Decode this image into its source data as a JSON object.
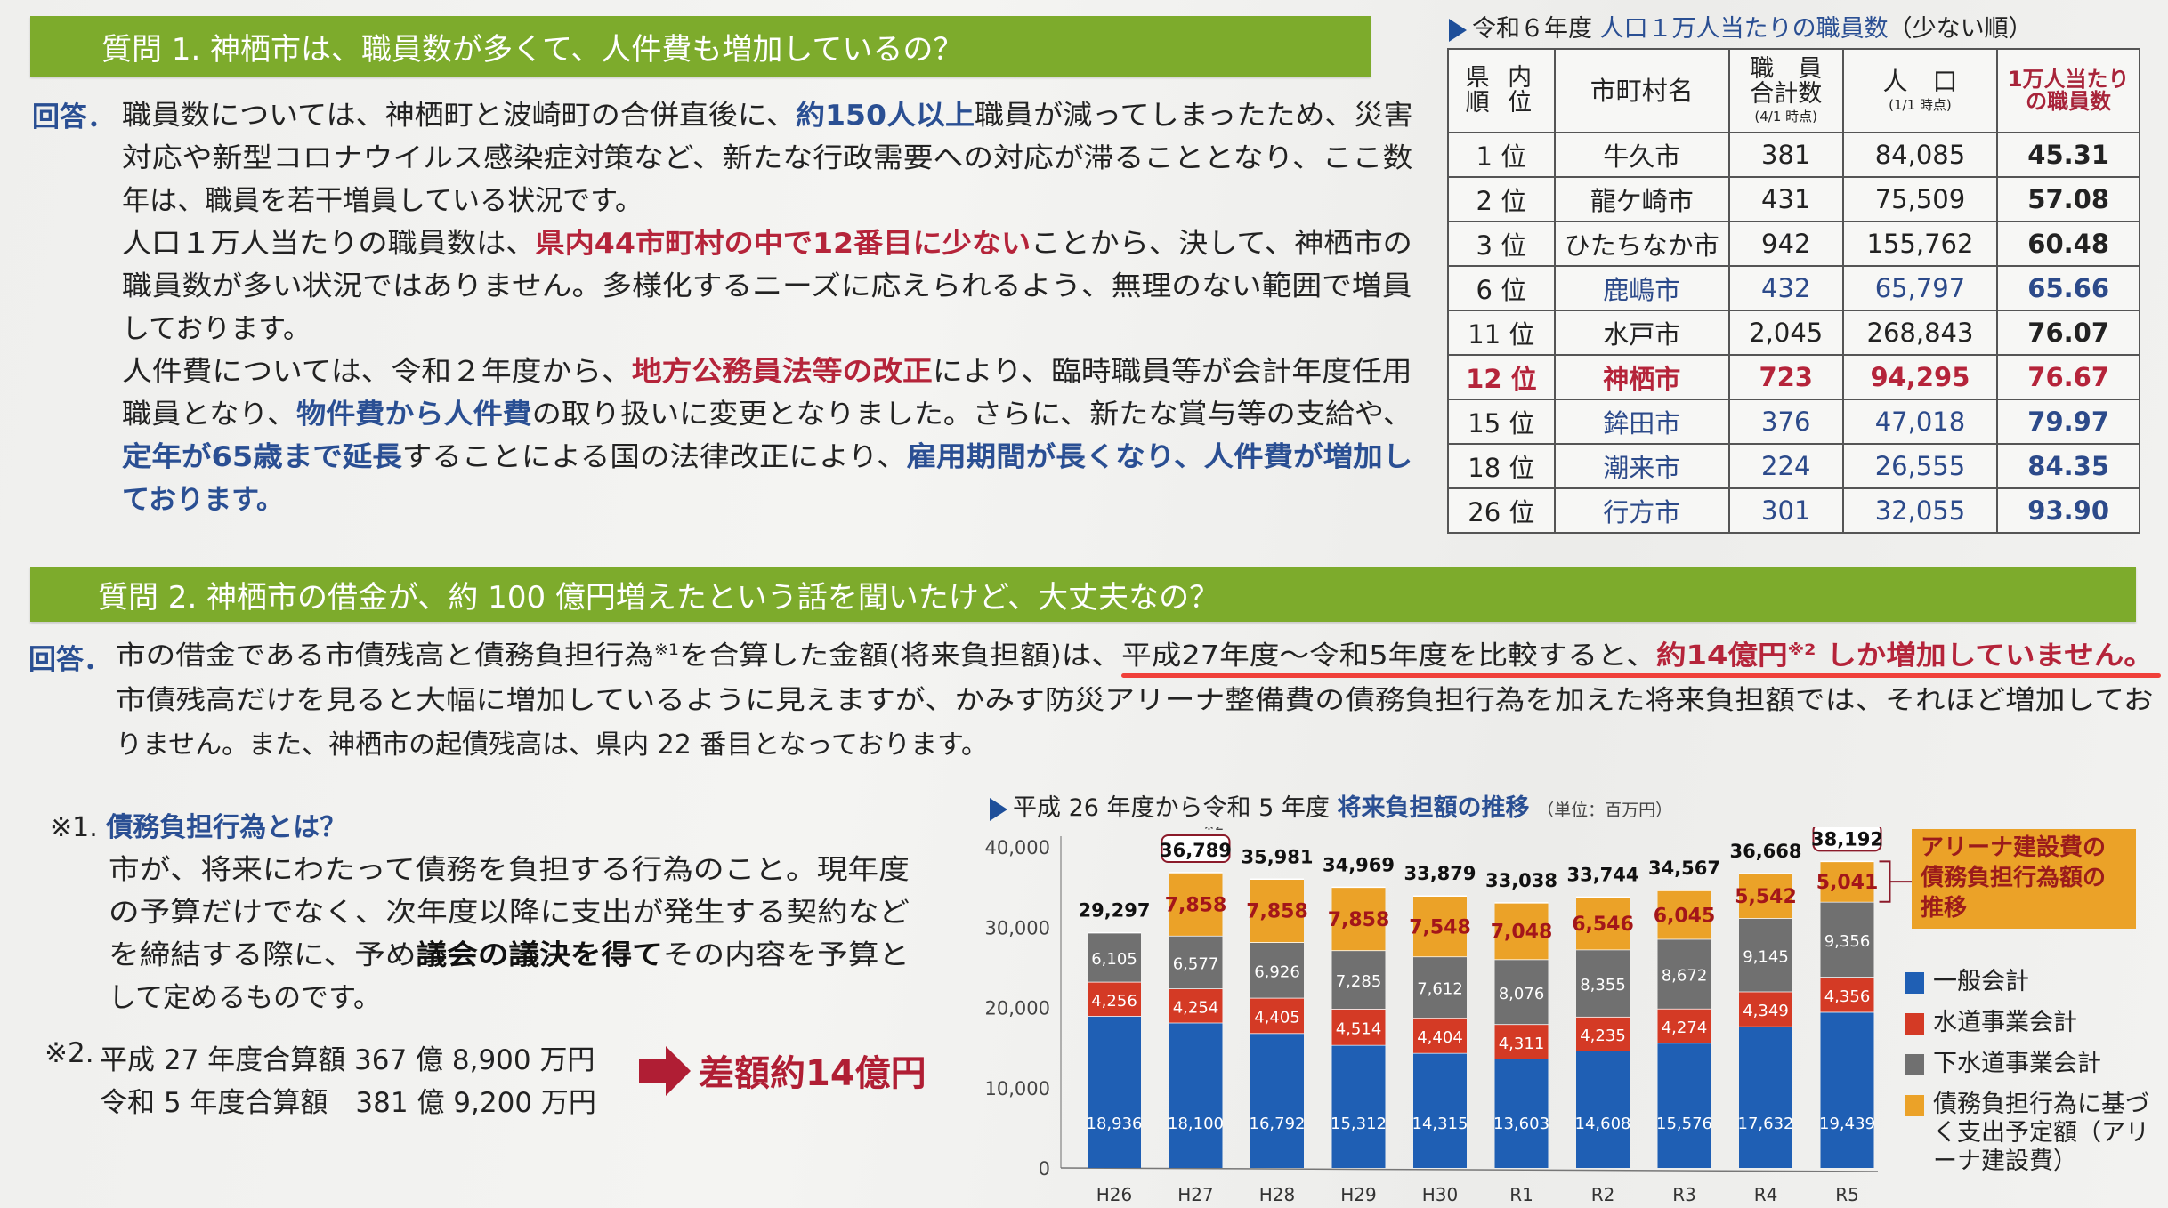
{
  "q1": {
    "title": "質問 1. 神栖市は、職員数が多くて、人件費も増加しているの？",
    "answer_label": "回答．",
    "lines": [
      [
        {
          "t": "職員数については、神栖町と波崎町の合併直後に、",
          "s": ""
        },
        {
          "t": "約150人以上",
          "s": "blue"
        },
        {
          "t": "職員が減ってしまったため、災害",
          "s": ""
        }
      ],
      [
        {
          "t": "対応や新型コロナウイルス感染症対策など、新たな行政需要への対応が滞ることとなり、ここ数",
          "s": ""
        }
      ],
      [
        {
          "t": "年は、職員を若干増員している状況です。",
          "s": ""
        }
      ],
      [
        {
          "t": "人口１万人当たりの職員数は、",
          "s": ""
        },
        {
          "t": "県内44市町村の中で12番目に少ない",
          "s": "red"
        },
        {
          "t": "ことから、決して、神栖市の",
          "s": ""
        }
      ],
      [
        {
          "t": "職員数が多い状況ではありません。多様化するニーズに応えられるよう、無理のない範囲で増員",
          "s": ""
        }
      ],
      [
        {
          "t": "しております。",
          "s": ""
        }
      ],
      [
        {
          "t": "人件費については、令和２年度から、",
          "s": ""
        },
        {
          "t": "地方公務員法等の改正",
          "s": "red"
        },
        {
          "t": "により、臨時職員等が会計年度任用",
          "s": ""
        }
      ],
      [
        {
          "t": "職員となり、",
          "s": ""
        },
        {
          "t": "物件費から人件費",
          "s": "blue"
        },
        {
          "t": "の取り扱いに変更となりました。さらに、新たな賞与等の支給や、",
          "s": ""
        }
      ],
      [
        {
          "t": "定年が65歳まで延長",
          "s": "blue"
        },
        {
          "t": "することによる国の法律改正により、",
          "s": ""
        },
        {
          "t": "雇用期間が長くなり、人件費が増加し",
          "s": "blue"
        }
      ],
      [
        {
          "t": "ております。",
          "s": "blue"
        }
      ]
    ]
  },
  "table": {
    "title_prefix": "令和６年度",
    "title_main": "人口１万人当たりの職員数",
    "title_suffix": "（少ない順）",
    "headers": {
      "rank": "県 内 順 位",
      "name": "市町村名",
      "staff": "職　員 合計数",
      "staff_sub": "(4/1 時点)",
      "population": "人　口",
      "population_sub": "(1/1 時点)",
      "per": "1万人当たり の職員数"
    },
    "rows": [
      {
        "rank": "1 位",
        "name": "牛久市",
        "staff": "381",
        "population": "84,085",
        "per": "45.31",
        "style": "normal"
      },
      {
        "rank": "2 位",
        "name": "龍ケ崎市",
        "staff": "431",
        "population": "75,509",
        "per": "57.08",
        "style": "normal"
      },
      {
        "rank": "3 位",
        "name": "ひたちなか市",
        "staff": "942",
        "population": "155,762",
        "per": "60.48",
        "style": "normal"
      },
      {
        "rank": "6 位",
        "name": "鹿嶋市",
        "staff": "432",
        "population": "65,797",
        "per": "65.66",
        "style": "blue"
      },
      {
        "rank": "11 位",
        "name": "水戸市",
        "staff": "2,045",
        "population": "268,843",
        "per": "76.07",
        "style": "normal"
      },
      {
        "rank": "12 位",
        "name": "神栖市",
        "staff": "723",
        "population": "94,295",
        "per": "76.67",
        "style": "red"
      },
      {
        "rank": "15 位",
        "name": "鉾田市",
        "staff": "376",
        "population": "47,018",
        "per": "79.97",
        "style": "blue"
      },
      {
        "rank": "18 位",
        "name": "潮来市",
        "staff": "224",
        "population": "26,555",
        "per": "84.35",
        "style": "blue"
      },
      {
        "rank": "26 位",
        "name": "行方市",
        "staff": "301",
        "population": "32,055",
        "per": "93.90",
        "style": "blue"
      }
    ]
  },
  "q2": {
    "title": "質問 2. 神栖市の借金が、約 100 億円増えたという話を聞いたけど、大丈夫なの？",
    "answer_label": "回答．",
    "lines": [
      [
        {
          "t": "市の借金である市債残高と債務負担行為",
          "s": ""
        },
        {
          "t": "※1",
          "s": "sup"
        },
        {
          "t": "を合算した金額(将来負担額)は、",
          "s": ""
        },
        {
          "t": "平成27年度～令和5年度を比較すると、",
          "s": "u"
        },
        {
          "t": "約14億円",
          "s": "red u"
        },
        {
          "t": "※2",
          "s": "sup red u"
        },
        {
          "t": " しか増加していません。",
          "s": "red u"
        }
      ],
      [
        {
          "t": "市債残高だけを見ると大幅に増加しているように見えますが、かみす防災アリーナ整備費の債務負担行為を加えた将来負担額では、それほど増加してお",
          "s": ""
        }
      ],
      [
        {
          "t": "りません。また、神栖市の起債残高は、県内 22 番目となっております。",
          "s": ""
        }
      ]
    ]
  },
  "notes": {
    "n1_label": "※1.",
    "n1_title": "債務負担行為とは？",
    "n1_lines": [
      [
        {
          "t": "市が、将来にわたって債務を負担する行為のこと。現年度",
          "s": ""
        }
      ],
      [
        {
          "t": "の予算だけでなく、次年度以降に支出が発生する契約など",
          "s": ""
        }
      ],
      [
        {
          "t": "を締結する際に、予め",
          "s": ""
        },
        {
          "t": "議会の議決を得て",
          "s": "bold"
        },
        {
          "t": "その内容を予算と",
          "s": ""
        }
      ],
      [
        {
          "t": "して定めるものです。",
          "s": ""
        }
      ]
    ],
    "n2_label": "※2.",
    "n2_lines": [
      [
        {
          "t": "平成 27 年度合算額 367 億 8,900 万円",
          "s": ""
        }
      ],
      [
        {
          "t": "令和 5 年度合算額　381 億 9,200 万円",
          "s": ""
        }
      ]
    ],
    "diff": "差額約14億円",
    "arrow_icon": "right-arrow-icon"
  },
  "chart_data": {
    "type": "bar",
    "stacked": true,
    "title_prefix": "平成 26 年度から令和 5 年度",
    "title": "将来負担額の推移",
    "unit": "（単位：百万円）",
    "categories": [
      "H26",
      "H27",
      "H28",
      "H29",
      "H30",
      "R1",
      "R2",
      "R3",
      "R4",
      "R5"
    ],
    "ylim": [
      0,
      40000
    ],
    "yticks": [
      "0",
      "10,000",
      "20,000",
      "30,000",
      "40,000"
    ],
    "ytick_values": [
      0,
      10000,
      20000,
      30000,
      40000
    ],
    "series": [
      {
        "name": "一般会計",
        "color": "#1f5fb4",
        "values": [
          18936,
          18100,
          16792,
          15312,
          14315,
          13603,
          14608,
          15576,
          17632,
          19439
        ]
      },
      {
        "name": "水道事業会計",
        "color": "#d43a25",
        "values": [
          4256,
          4254,
          4405,
          4514,
          4404,
          4311,
          4235,
          4274,
          4349,
          4356
        ]
      },
      {
        "name": "下水道事業会計",
        "color": "#707070",
        "values": [
          6105,
          6577,
          6926,
          7285,
          7612,
          8076,
          8355,
          8672,
          9145,
          9356
        ]
      },
      {
        "name": "債務負担行為に基づく支出予定額（アリーナ建設費）",
        "color": "#eba228",
        "values": [
          null,
          7858,
          7858,
          7858,
          7548,
          7048,
          6546,
          6045,
          5542,
          5041
        ]
      }
    ],
    "totals": [
      "29,297",
      "36,789",
      "35,981",
      "34,969",
      "33,879",
      "33,038",
      "33,744",
      "34,567",
      "36,668",
      "38,192"
    ],
    "total_note": "※2",
    "highlighted_totals": [
      "H27",
      "R5"
    ],
    "arena_callout": "アリーナ建設費の債務負担行為額の推移",
    "legend_position": "right"
  }
}
